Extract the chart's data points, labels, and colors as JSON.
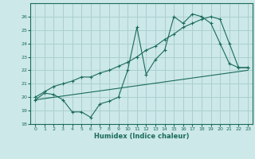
{
  "xlabel": "Humidex (Indice chaleur)",
  "background_color": "#cce8e8",
  "grid_color": "#aacfcf",
  "line_color": "#1a6b5a",
  "xlim": [
    -0.5,
    23.5
  ],
  "ylim": [
    18,
    27
  ],
  "xticks": [
    0,
    1,
    2,
    3,
    4,
    5,
    6,
    7,
    8,
    9,
    10,
    11,
    12,
    13,
    14,
    15,
    16,
    17,
    18,
    19,
    20,
    21,
    22,
    23
  ],
  "yticks": [
    18,
    19,
    20,
    21,
    22,
    23,
    24,
    25,
    26
  ],
  "line1_x": [
    0,
    1,
    2,
    3,
    4,
    5,
    6,
    7,
    8,
    9,
    10,
    11,
    12,
    13,
    14,
    15,
    16,
    17,
    18,
    19,
    20,
    21,
    22,
    23
  ],
  "line1_y": [
    19.8,
    20.3,
    20.2,
    19.8,
    18.9,
    18.9,
    18.5,
    19.5,
    19.7,
    20.0,
    22.0,
    25.2,
    21.7,
    22.8,
    23.5,
    26.0,
    25.5,
    26.2,
    26.0,
    25.5,
    24.0,
    22.5,
    22.2,
    22.2
  ],
  "line2_x": [
    0,
    1,
    2,
    3,
    4,
    5,
    6,
    7,
    8,
    9,
    10,
    11,
    12,
    13,
    14,
    15,
    16,
    17,
    18,
    19,
    20,
    21,
    22,
    23
  ],
  "line2_y": [
    20.0,
    20.4,
    20.8,
    21.0,
    21.2,
    21.5,
    21.5,
    21.8,
    22.0,
    22.3,
    22.6,
    23.0,
    23.5,
    23.8,
    24.3,
    24.7,
    25.2,
    25.5,
    25.8,
    26.0,
    25.8,
    24.0,
    22.2,
    22.2
  ],
  "line3_x": [
    0,
    23
  ],
  "line3_y": [
    19.8,
    22.0
  ]
}
